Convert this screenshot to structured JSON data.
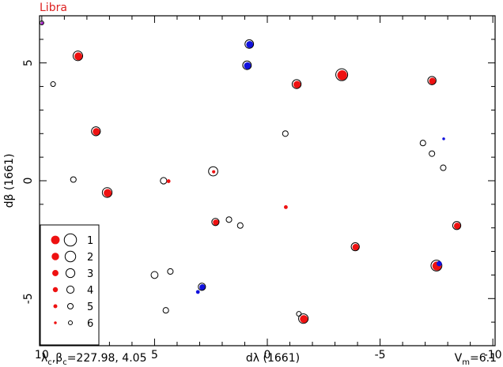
{
  "chart_data": {
    "type": "scatter",
    "title": "Libra",
    "xlabel": "dλ (1661)",
    "ylabel": "dβ (1661)",
    "xlim": [
      10.1,
      -10.1
    ],
    "ylim": [
      -7.0,
      7.0
    ],
    "x_ticks": [
      10,
      5,
      0,
      -5,
      -10
    ],
    "x_tick_labels": [
      "10",
      "5",
      "0",
      "-5",
      "-10"
    ],
    "y_ticks": [
      -5,
      0,
      5
    ],
    "y_tick_labels": [
      "-5",
      "0",
      "5"
    ],
    "footer_left_prefix": "λ",
    "footer_left_sub1": "c",
    "footer_left_mid": ",β",
    "footer_left_sub2": "c",
    "footer_left_values": "=227.98,   4.05",
    "footer_right_prefix": "V",
    "footer_right_sub": "m",
    "footer_right_values": "=6.1",
    "legend": {
      "position": "bottom-left",
      "entries": [
        {
          "label": "1",
          "mag": 1
        },
        {
          "label": "2",
          "mag": 2
        },
        {
          "label": "3",
          "mag": 3
        },
        {
          "label": "4",
          "mag": 4
        },
        {
          "label": "5",
          "mag": 5
        },
        {
          "label": "6",
          "mag": 6
        }
      ]
    },
    "colors": {
      "fill_primary": "#ee1111",
      "fill_secondary": "#1111dd",
      "accent_purple": "#aa22cc",
      "title": "#dd2222"
    },
    "points": [
      {
        "x": 10.0,
        "y": 6.7,
        "mag": 6,
        "ring": true,
        "fill": "purple"
      },
      {
        "x": 8.4,
        "y": 5.3,
        "mag": 2.6,
        "ring": true,
        "fill": "red"
      },
      {
        "x": 9.5,
        "y": 4.1,
        "mag": 5.5,
        "ring": true,
        "fill": "none"
      },
      {
        "x": 7.6,
        "y": 2.1,
        "mag": 3,
        "ring": true,
        "fill": "red"
      },
      {
        "x": 8.6,
        "y": 0.05,
        "mag": 5,
        "ring": true,
        "fill": "none"
      },
      {
        "x": 7.1,
        "y": -0.5,
        "mag": 2.5,
        "ring": true,
        "fill": "red"
      },
      {
        "x": 4.6,
        "y": 0.0,
        "mag": 4.5,
        "ring": true,
        "fill": "none"
      },
      {
        "x": 4.4,
        "y": 0.0,
        "mag": 5.5,
        "ring": false,
        "fill": "red"
      },
      {
        "x": 2.4,
        "y": 0.4,
        "mag": 2.8,
        "ring": true,
        "fill": "red_small"
      },
      {
        "x": 0.8,
        "y": 5.8,
        "mag": 3.2,
        "ring": true,
        "fill": "blue"
      },
      {
        "x": 0.9,
        "y": 4.9,
        "mag": 3.2,
        "ring": true,
        "fill": "blue"
      },
      {
        "x": -1.3,
        "y": 4.1,
        "mag": 3,
        "ring": true,
        "fill": "red"
      },
      {
        "x": -3.3,
        "y": 4.5,
        "mag": 1.2,
        "ring": true,
        "fill": "red"
      },
      {
        "x": -0.8,
        "y": 2.0,
        "mag": 5,
        "ring": true,
        "fill": "none"
      },
      {
        "x": -7.3,
        "y": 4.25,
        "mag": 3.4,
        "ring": true,
        "fill": "red"
      },
      {
        "x": -7.8,
        "y": 1.8,
        "mag": 6.5,
        "ring": false,
        "fill": "blue"
      },
      {
        "x": -6.9,
        "y": 1.6,
        "mag": 5,
        "ring": true,
        "fill": "none"
      },
      {
        "x": -7.3,
        "y": 1.15,
        "mag": 5,
        "ring": true,
        "fill": "none"
      },
      {
        "x": -7.8,
        "y": 0.55,
        "mag": 5,
        "ring": true,
        "fill": "none"
      },
      {
        "x": -0.8,
        "y": -1.1,
        "mag": 5.5,
        "ring": false,
        "fill": "red"
      },
      {
        "x": 2.3,
        "y": -1.75,
        "mag": 4,
        "ring": true,
        "fill": "red"
      },
      {
        "x": 1.7,
        "y": -1.65,
        "mag": 5,
        "ring": true,
        "fill": "none"
      },
      {
        "x": 1.2,
        "y": -1.9,
        "mag": 5,
        "ring": true,
        "fill": "none"
      },
      {
        "x": -3.9,
        "y": -2.8,
        "mag": 3.5,
        "ring": true,
        "fill": "red"
      },
      {
        "x": -8.4,
        "y": -1.9,
        "mag": 3.5,
        "ring": true,
        "fill": "red"
      },
      {
        "x": -7.5,
        "y": -3.6,
        "mag": 1.8,
        "ring": true,
        "fill": "red"
      },
      {
        "x": -7.6,
        "y": -3.5,
        "mag": 4.5,
        "ring": false,
        "fill": "blue"
      },
      {
        "x": 5.0,
        "y": -4.0,
        "mag": 4.2,
        "ring": true,
        "fill": "none"
      },
      {
        "x": 4.3,
        "y": -3.85,
        "mag": 5,
        "ring": true,
        "fill": "none"
      },
      {
        "x": 2.9,
        "y": -4.5,
        "mag": 4,
        "ring": true,
        "fill": "blue"
      },
      {
        "x": 3.1,
        "y": -4.7,
        "mag": 5.5,
        "ring": false,
        "fill": "blue"
      },
      {
        "x": 4.5,
        "y": -5.5,
        "mag": 5,
        "ring": true,
        "fill": "none"
      },
      {
        "x": -1.4,
        "y": -5.65,
        "mag": 5.5,
        "ring": true,
        "fill": "none"
      },
      {
        "x": -1.6,
        "y": -5.85,
        "mag": 2.6,
        "ring": true,
        "fill": "red"
      }
    ]
  }
}
